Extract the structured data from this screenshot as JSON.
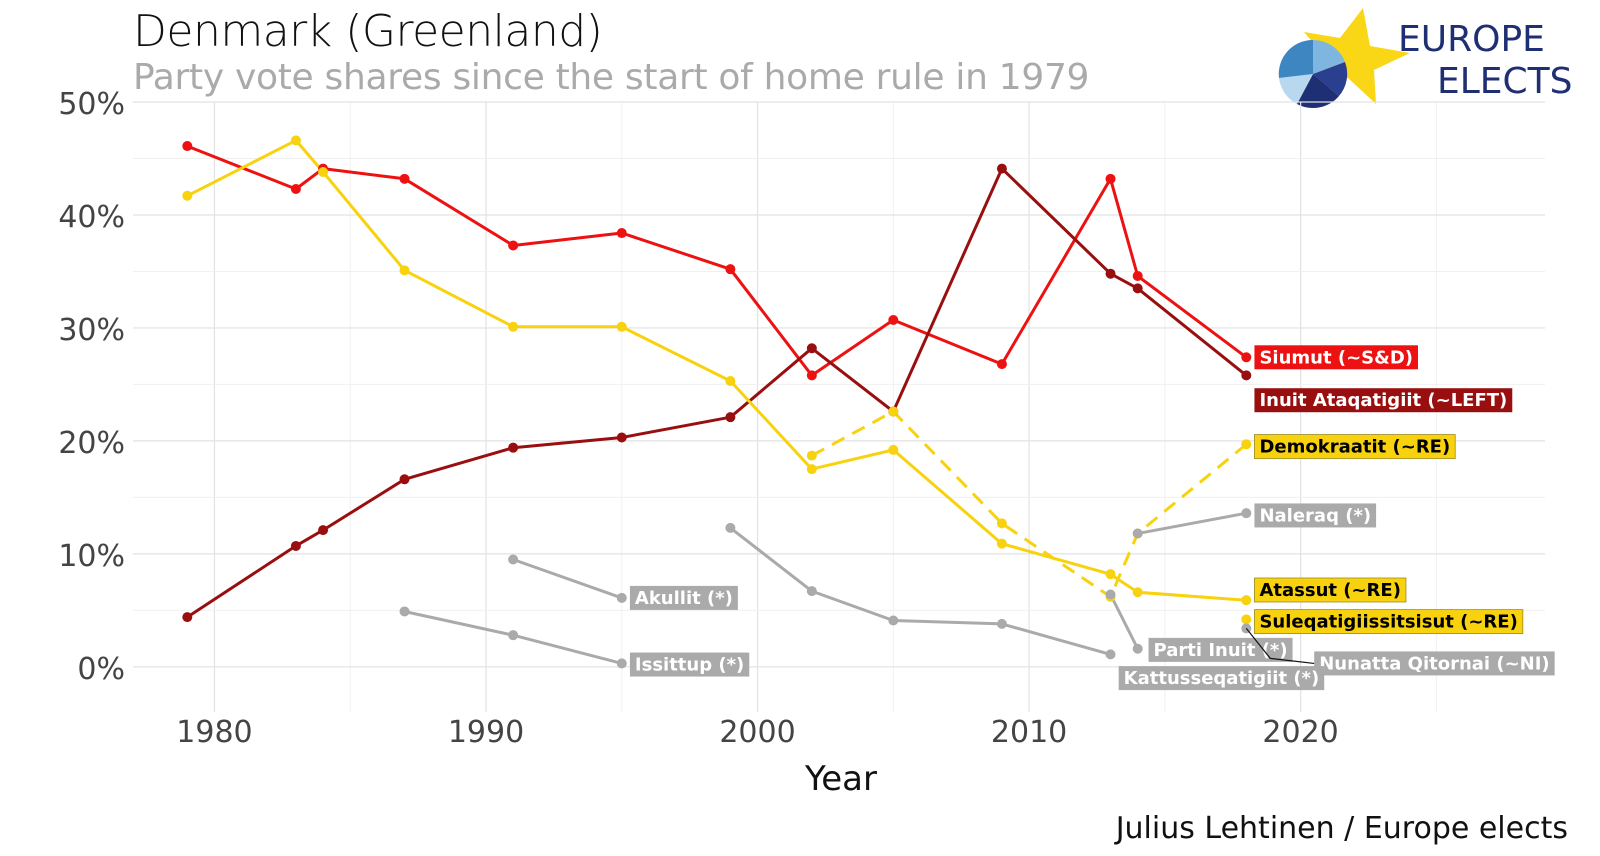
{
  "title": "Denmark (Greenland)",
  "subtitle": "Party vote shares since the start of home rule in 1979",
  "caption": "Julius Lehtinen / Europe elects",
  "logo": {
    "line1": "EUROPE",
    "line2": "ELECTS"
  },
  "chart_data": {
    "type": "line",
    "xlabel": "Year",
    "ylabel": "",
    "xlim": [
      1977,
      2029
    ],
    "ylim": [
      -4,
      50
    ],
    "x_ticks": [
      1980,
      1990,
      2000,
      2010,
      2020
    ],
    "y_ticks": [
      {
        "value": 0,
        "label": "0%"
      },
      {
        "value": 10,
        "label": "10%"
      },
      {
        "value": 20,
        "label": "20%"
      },
      {
        "value": 30,
        "label": "30%"
      },
      {
        "value": 40,
        "label": "40%"
      },
      {
        "value": 50,
        "label": "50%"
      }
    ],
    "grid": true,
    "series": [
      {
        "name": "Siumut (~S&D)",
        "color": "#ee1111",
        "text_color": "#ffffff",
        "style": "solid",
        "points": [
          [
            1979,
            46.1
          ],
          [
            1983,
            42.3
          ],
          [
            1984,
            44.1
          ],
          [
            1987,
            43.2
          ],
          [
            1991,
            37.3
          ],
          [
            1995,
            38.4
          ],
          [
            1999,
            35.2
          ],
          [
            2002,
            25.8
          ],
          [
            2005,
            30.7
          ],
          [
            2009,
            26.8
          ],
          [
            2013,
            43.2
          ],
          [
            2014,
            34.6
          ],
          [
            2018,
            27.4
          ]
        ]
      },
      {
        "name": "Inuit Ataqatigiit (~LEFT)",
        "color": "#990f0f",
        "text_color": "#ffffff",
        "style": "solid",
        "points": [
          [
            1979,
            4.4
          ],
          [
            1983,
            10.7
          ],
          [
            1984,
            12.1
          ],
          [
            1987,
            16.6
          ],
          [
            1991,
            19.4
          ],
          [
            1995,
            20.3
          ],
          [
            1999,
            22.1
          ],
          [
            2002,
            28.2
          ],
          [
            2005,
            22.6
          ],
          [
            2009,
            44.1
          ],
          [
            2013,
            34.8
          ],
          [
            2014,
            33.5
          ],
          [
            2018,
            25.8
          ]
        ]
      },
      {
        "name": "Atassut (~RE)",
        "color": "#f8d20e",
        "text_color": "#000000",
        "style": "solid",
        "points": [
          [
            1979,
            41.7
          ],
          [
            1983,
            46.6
          ],
          [
            1984,
            43.8
          ],
          [
            1987,
            35.1
          ],
          [
            1991,
            30.1
          ],
          [
            1995,
            30.1
          ],
          [
            1999,
            25.3
          ],
          [
            2002,
            17.5
          ],
          [
            2005,
            19.2
          ],
          [
            2009,
            10.9
          ],
          [
            2013,
            8.2
          ],
          [
            2014,
            6.6
          ],
          [
            2018,
            5.9
          ]
        ]
      },
      {
        "name": "Demokraatit (~RE)",
        "color": "#f8d20e",
        "text_color": "#000000",
        "style": "dashed",
        "points": [
          [
            2002,
            18.7
          ],
          [
            2005,
            22.6
          ],
          [
            2009,
            12.7
          ],
          [
            2013,
            6.2
          ],
          [
            2014,
            11.8
          ],
          [
            2018,
            19.7
          ]
        ]
      },
      {
        "name": "Suleqatigiissitsisut (~RE)",
        "color": "#f8d20e",
        "text_color": "#000000",
        "style": "solid",
        "points": [
          [
            2018,
            4.2
          ]
        ]
      },
      {
        "name": "Naleraq (*)",
        "color": "#aaaaaa",
        "text_color": "#ffffff",
        "style": "solid",
        "points": [
          [
            2014,
            11.8
          ],
          [
            2018,
            13.6
          ]
        ]
      },
      {
        "name": "Akullit (*)",
        "color": "#aaaaaa",
        "text_color": "#ffffff",
        "style": "solid",
        "points": [
          [
            1991,
            9.5
          ],
          [
            1995,
            6.1
          ]
        ]
      },
      {
        "name": "Issittup (*)",
        "color": "#aaaaaa",
        "text_color": "#ffffff",
        "style": "solid",
        "points": [
          [
            1987,
            4.9
          ],
          [
            1991,
            2.8
          ],
          [
            1995,
            0.3
          ]
        ]
      },
      {
        "name": "Kattusseqatigiit (*)",
        "color": "#aaaaaa",
        "text_color": "#ffffff",
        "style": "solid",
        "points": [
          [
            1999,
            12.3
          ],
          [
            2002,
            6.7
          ],
          [
            2005,
            4.1
          ],
          [
            2009,
            3.8
          ],
          [
            2013,
            1.1
          ]
        ]
      },
      {
        "name": "Parti Inuit (*)",
        "color": "#aaaaaa",
        "text_color": "#ffffff",
        "style": "solid",
        "points": [
          [
            2013,
            6.4
          ],
          [
            2014,
            1.6
          ]
        ]
      },
      {
        "name": "Nunatta Qitornai (~NI)",
        "color": "#aaaaaa",
        "text_color": "#ffffff",
        "style": "solid",
        "points": [
          [
            2018,
            3.4
          ]
        ]
      }
    ],
    "labels": [
      {
        "series": "Siumut (~S&D)",
        "anchor": [
          2018,
          27.4
        ],
        "at": [
          2018.3,
          27.4
        ],
        "leader": false
      },
      {
        "series": "Inuit Ataqatigiit (~LEFT)",
        "anchor": [
          2018,
          25.8
        ],
        "at": [
          2018.3,
          23.6
        ],
        "leader": false
      },
      {
        "series": "Demokraatit (~RE)",
        "anchor": [
          2018,
          19.7
        ],
        "at": [
          2018.3,
          19.5
        ],
        "leader": false
      },
      {
        "series": "Naleraq (*)",
        "anchor": [
          2018,
          13.6
        ],
        "at": [
          2018.3,
          13.4
        ],
        "leader": false
      },
      {
        "series": "Atassut (~RE)",
        "anchor": [
          2018,
          5.9
        ],
        "at": [
          2018.3,
          6.8
        ],
        "leader": false
      },
      {
        "series": "Suleqatigiissitsisut (~RE)",
        "anchor": [
          2018,
          4.2
        ],
        "at": [
          2018.3,
          4.0
        ],
        "leader": false
      },
      {
        "series": "Akullit (*)",
        "anchor": [
          1995,
          6.1
        ],
        "at": [
          1995.3,
          6.1
        ],
        "leader": false
      },
      {
        "series": "Issittup (*)",
        "anchor": [
          1995,
          0.3
        ],
        "at": [
          1995.3,
          0.2
        ],
        "leader": false
      },
      {
        "series": "Parti Inuit (*)",
        "anchor": [
          2014,
          1.6
        ],
        "at": [
          2014.4,
          1.5
        ],
        "leader": false
      },
      {
        "series": "Nunatta Qitornai (~NI)",
        "anchor": [
          2018,
          3.4
        ],
        "at": [
          2020.5,
          0.3
        ],
        "leader": true
      },
      {
        "series": "Kattusseqatigiit (*)",
        "anchor": [
          2013,
          1.1
        ],
        "at": [
          2013.3,
          -1.0
        ],
        "leader": false
      }
    ]
  }
}
